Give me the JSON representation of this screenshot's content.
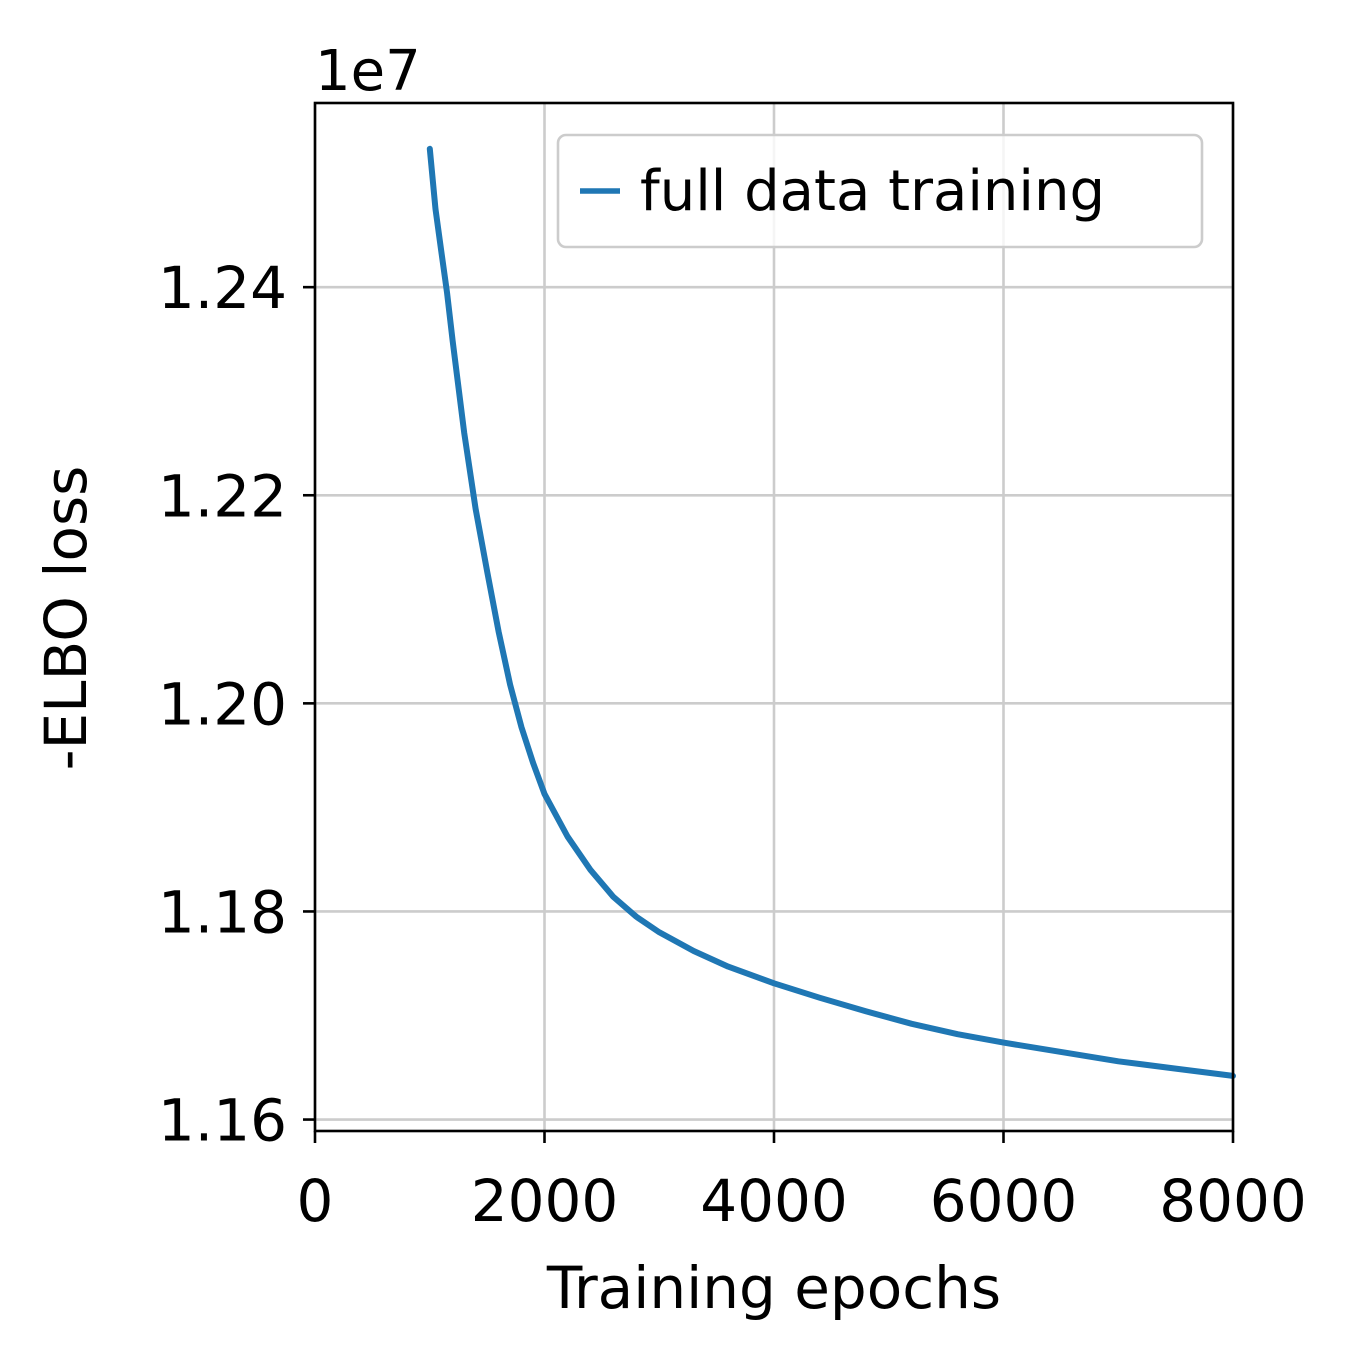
{
  "chart_data": {
    "type": "line",
    "title": "",
    "xlabel": "Training epochs",
    "ylabel": "-ELBO loss",
    "offset_label": "1e7",
    "xlim": [
      0,
      8000
    ],
    "ylim": [
      1.1589,
      1.2577
    ],
    "xticks": [
      0,
      2000,
      4000,
      6000,
      8000
    ],
    "xtick_labels": [
      "0",
      "2000",
      "4000",
      "6000",
      "8000"
    ],
    "yticks": [
      1.16,
      1.18,
      1.2,
      1.22,
      1.24
    ],
    "ytick_labels": [
      "1.16",
      "1.18",
      "1.20",
      "1.22",
      "1.24"
    ],
    "grid": true,
    "legend_position": "top-right",
    "series": [
      {
        "name": "full data training",
        "color": "#1f77b4",
        "x": [
          1000,
          1050,
          1100,
          1150,
          1200,
          1300,
          1400,
          1500,
          1600,
          1700,
          1800,
          1900,
          2000,
          2200,
          2400,
          2600,
          2800,
          3000,
          3300,
          3600,
          4000,
          4400,
          4800,
          5200,
          5600,
          6000,
          6500,
          7000,
          7500,
          8000
        ],
        "y": [
          1.2533,
          1.2475,
          1.2435,
          1.2395,
          1.2348,
          1.226,
          1.2187,
          1.2127,
          1.2069,
          1.2018,
          1.1977,
          1.1943,
          1.1913,
          1.1872,
          1.184,
          1.1814,
          1.1795,
          1.178,
          1.1762,
          1.1747,
          1.1731,
          1.1717,
          1.1704,
          1.1692,
          1.1682,
          1.1674,
          1.1665,
          1.1656,
          1.1649,
          1.1642
        ]
      }
    ]
  }
}
